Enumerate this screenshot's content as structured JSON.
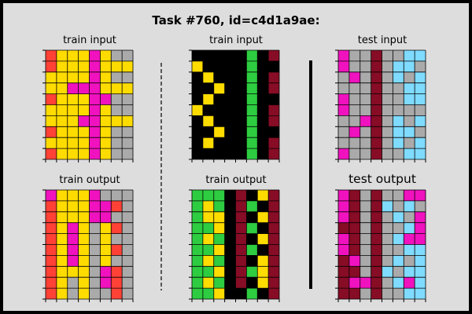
{
  "title": "Task #760, id=c4d1a9ae:",
  "palette": {
    "0": "#000000",
    "2": "#ff4136",
    "3": "#2ecc40",
    "4": "#ffdc00",
    "5": "#aaaaaa",
    "6": "#f012be",
    "8": "#7fdbff",
    "9": "#870c25"
  },
  "panels": [
    {
      "label": "train input",
      "rows": [
        "24446455",
        "24446444",
        "44446455",
        "44666444",
        "24446655",
        "44446455",
        "44466444",
        "24446455",
        "44446455",
        "24446455"
      ]
    },
    {
      "label": "train input",
      "rows": [
        "00000309",
        "40000300",
        "04000309",
        "00400309",
        "04000300",
        "40000309",
        "04000309",
        "00400300",
        "04000309",
        "00000309"
      ]
    },
    {
      "label": "test input",
      "rows": [
        "65595588",
        "65595885",
        "56595858",
        "55595588",
        "65595588",
        "65595555",
        "55695858",
        "56595885",
        "55595858",
        "65595588"
      ]
    },
    {
      "label": "train output",
      "rows": [
        "64446555",
        "24446625",
        "24446655",
        "24645425",
        "24645455",
        "24645425",
        "24645455",
        "24445625",
        "24545625",
        "24545525"
      ]
    },
    {
      "label": "train output",
      "rows": [
        "33309049",
        "34309309",
        "34409049",
        "33409309",
        "34309049",
        "33409309",
        "34309049",
        "33409349",
        "34309049",
        "33400309"
      ]
    },
    {
      "label": "test output",
      "rows": [
        "69595566",
        "69598585",
        "69595856",
        "99595586",
        "69595866",
        "69595588",
        "96595858",
        "99598588",
        "96695868",
        "99595588"
      ]
    }
  ]
}
